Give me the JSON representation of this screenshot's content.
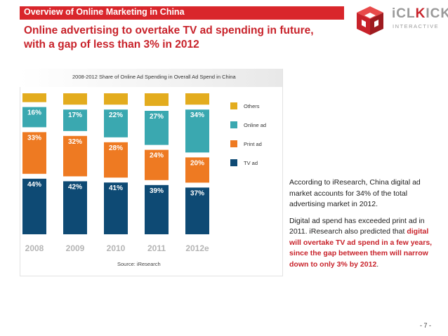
{
  "header": {
    "title": "Overview of Online Marketing in China"
  },
  "headline": {
    "line1": "Online advertising to overtake TV ad spending in future,",
    "line2": "with a gap of less than 3% in 2012"
  },
  "logo": {
    "brand_main": "iCL",
    "brand_mark": "K",
    "brand_rest": "ICK",
    "sub": "INTERACTIVE",
    "icon": "cube-logo-icon"
  },
  "colors": {
    "header_red": "#d9262b",
    "headline_red": "#c8222a",
    "tv": "#0e4a74",
    "print": "#ee7a22",
    "online": "#3aa8b0",
    "others": "#e3ac1e",
    "xlabel": "#b5b5b5"
  },
  "chart_data": {
    "type": "bar",
    "stacked": true,
    "title": "2008-2012 Share of Online Ad Spending in Overall Ad Spend in China",
    "categories": [
      "2008",
      "2009",
      "2010",
      "2011",
      "2012e"
    ],
    "unit": "%",
    "series": [
      {
        "name": "TV ad",
        "values": [
          44,
          42,
          41,
          39,
          37
        ],
        "labels": [
          "44%",
          "42%",
          "41%",
          "39%",
          "37%"
        ]
      },
      {
        "name": "Print ad",
        "values": [
          33,
          32,
          28,
          24,
          20
        ],
        "labels": [
          "33%",
          "32%",
          "28%",
          "24%",
          "20%"
        ]
      },
      {
        "name": "Online ad",
        "values": [
          16,
          17,
          22,
          27,
          34
        ],
        "labels": [
          "16%",
          "17%",
          "22%",
          "27%",
          "34%"
        ]
      },
      {
        "name": "Others",
        "values": [
          7,
          9,
          9,
          10,
          9
        ],
        "labels": [
          "",
          "",
          "",
          "",
          ""
        ]
      }
    ],
    "legend_order": [
      "Others",
      "Online ad",
      "Print ad",
      "TV ad"
    ],
    "legend_position": "right",
    "source": "Source: iResearch"
  },
  "side_text": {
    "p1": "According to iResearch, China digital ad market accounts for 34% of the total advertising market in 2012.",
    "p2_plain": "Digital ad spend has exceeded print ad in 2011. iResearch also predicted that ",
    "p2_bold": "digital will overtake TV ad spend in a few years, since the gap between them will narrow down to only 3% by 2012",
    "p2_end": "."
  },
  "page": {
    "number": "- 7 -"
  }
}
